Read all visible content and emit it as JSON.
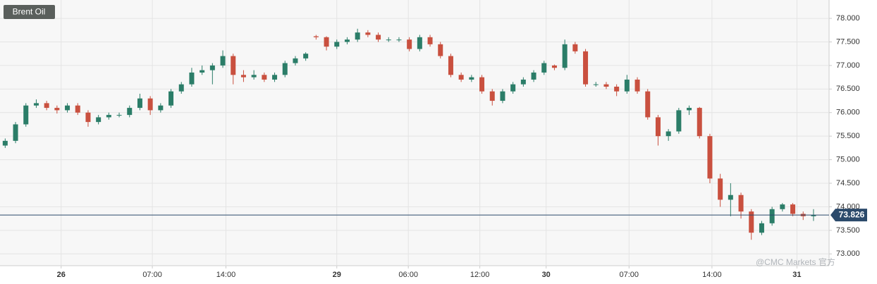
{
  "chart_data": {
    "type": "candlestick",
    "title": "Brent Oil",
    "watermark": "@CMC Markets 官方",
    "ohlc": [
      [
        75.3,
        75.45,
        75.25,
        75.4
      ],
      [
        75.4,
        75.8,
        75.35,
        75.75
      ],
      [
        75.75,
        76.2,
        75.7,
        76.15
      ],
      [
        76.15,
        76.28,
        76.1,
        76.2
      ],
      [
        76.2,
        76.25,
        76.05,
        76.1
      ],
      [
        76.1,
        76.15,
        75.98,
        76.05
      ],
      [
        76.05,
        76.2,
        76.0,
        76.15
      ],
      [
        76.15,
        76.2,
        75.95,
        76.0
      ],
      [
        76.0,
        76.05,
        75.7,
        75.8
      ],
      [
        75.8,
        75.95,
        75.75,
        75.9
      ],
      [
        75.9,
        76.0,
        75.85,
        75.95
      ],
      [
        75.95,
        76.0,
        75.9,
        75.95
      ],
      [
        75.95,
        76.15,
        75.9,
        76.1
      ],
      [
        76.1,
        76.4,
        76.05,
        76.3
      ],
      [
        76.3,
        76.35,
        75.95,
        76.05
      ],
      [
        76.05,
        76.2,
        76.0,
        76.15
      ],
      [
        76.15,
        76.5,
        76.1,
        76.45
      ],
      [
        76.45,
        76.65,
        76.4,
        76.6
      ],
      [
        76.6,
        76.95,
        76.55,
        76.85
      ],
      [
        76.85,
        77.0,
        76.8,
        76.9
      ],
      [
        76.9,
        77.05,
        76.6,
        77.0
      ],
      [
        77.0,
        77.32,
        76.95,
        77.2
      ],
      [
        77.2,
        77.25,
        76.6,
        76.8
      ],
      [
        76.8,
        76.9,
        76.65,
        76.75
      ],
      [
        76.75,
        76.9,
        76.7,
        76.8
      ],
      [
        76.8,
        76.85,
        76.65,
        76.7
      ],
      [
        76.7,
        76.85,
        76.65,
        76.8
      ],
      [
        76.8,
        77.1,
        76.75,
        77.05
      ],
      [
        77.05,
        77.2,
        77.0,
        77.15
      ],
      [
        77.15,
        77.28,
        77.1,
        77.25
      ],
      [
        77.62,
        77.65,
        77.55,
        77.6
      ],
      [
        77.6,
        77.62,
        77.32,
        77.4
      ],
      [
        77.4,
        77.55,
        77.35,
        77.5
      ],
      [
        77.5,
        77.6,
        77.45,
        77.55
      ],
      [
        77.55,
        77.78,
        77.5,
        77.7
      ],
      [
        77.7,
        77.75,
        77.6,
        77.65
      ],
      [
        77.65,
        77.7,
        77.5,
        77.55
      ],
      [
        77.55,
        77.6,
        77.5,
        77.55
      ],
      [
        77.55,
        77.6,
        77.5,
        77.55
      ],
      [
        77.55,
        77.6,
        77.3,
        77.35
      ],
      [
        77.35,
        77.65,
        77.3,
        77.6
      ],
      [
        77.6,
        77.65,
        77.4,
        77.45
      ],
      [
        77.45,
        77.5,
        77.15,
        77.2
      ],
      [
        77.2,
        77.25,
        76.75,
        76.8
      ],
      [
        76.8,
        76.85,
        76.65,
        76.7
      ],
      [
        76.7,
        76.8,
        76.65,
        76.75
      ],
      [
        76.75,
        76.8,
        76.4,
        76.45
      ],
      [
        76.45,
        76.5,
        76.15,
        76.25
      ],
      [
        76.25,
        76.5,
        76.2,
        76.45
      ],
      [
        76.45,
        76.65,
        76.4,
        76.6
      ],
      [
        76.6,
        76.75,
        76.55,
        76.7
      ],
      [
        76.7,
        76.9,
        76.65,
        76.85
      ],
      [
        76.85,
        77.1,
        76.8,
        77.05
      ],
      [
        77.0,
        77.02,
        76.9,
        76.95
      ],
      [
        76.95,
        77.55,
        76.9,
        77.45
      ],
      [
        77.45,
        77.5,
        77.25,
        77.3
      ],
      [
        77.3,
        77.35,
        76.55,
        76.6
      ],
      [
        76.6,
        76.65,
        76.55,
        76.6
      ],
      [
        76.6,
        76.65,
        76.5,
        76.55
      ],
      [
        76.55,
        76.6,
        76.35,
        76.45
      ],
      [
        76.45,
        76.8,
        76.4,
        76.7
      ],
      [
        76.7,
        76.75,
        76.4,
        76.45
      ],
      [
        76.45,
        76.5,
        75.85,
        75.9
      ],
      [
        75.9,
        75.95,
        75.3,
        75.5
      ],
      [
        75.5,
        75.65,
        75.4,
        75.6
      ],
      [
        75.6,
        76.1,
        75.55,
        76.05
      ],
      [
        76.05,
        76.15,
        75.95,
        76.1
      ],
      [
        76.1,
        76.12,
        75.45,
        75.5
      ],
      [
        75.5,
        75.55,
        74.5,
        74.6
      ],
      [
        74.6,
        74.7,
        74.0,
        74.15
      ],
      [
        74.15,
        74.5,
        73.8,
        74.25
      ],
      [
        74.25,
        74.3,
        73.75,
        73.9
      ],
      [
        73.9,
        73.95,
        73.3,
        73.45
      ],
      [
        73.45,
        73.7,
        73.4,
        73.65
      ],
      [
        73.65,
        74.0,
        73.6,
        73.95
      ],
      [
        73.95,
        74.08,
        73.9,
        74.05
      ],
      [
        74.05,
        74.08,
        73.8,
        73.85
      ],
      [
        73.85,
        73.9,
        73.72,
        73.8
      ],
      [
        73.8,
        73.95,
        73.7,
        73.826
      ]
    ],
    "up_color": "#2b7d68",
    "down_color": "#c9503f",
    "last_price": 73.826,
    "last_price_color": "#2b4a6b",
    "xlim": [
      0,
      80
    ],
    "xticks": [
      {
        "value": 5.9,
        "label": "26"
      },
      {
        "value": 14.7,
        "label": "07:00"
      },
      {
        "value": 21.8,
        "label": "14:00"
      },
      {
        "value": 32.5,
        "label": "29"
      },
      {
        "value": 39.4,
        "label": "06:00"
      },
      {
        "value": 46.3,
        "label": "12:00"
      },
      {
        "value": 52.7,
        "label": "30"
      },
      {
        "value": 60.7,
        "label": "07:00"
      },
      {
        "value": 68.7,
        "label": "14:00"
      },
      {
        "value": 76.9,
        "label": "31"
      }
    ],
    "ylim": [
      72.75,
      78.39
    ],
    "yticks": [
      {
        "value": 73,
        "label": "73.000"
      },
      {
        "value": 73.5,
        "label": "73.500"
      },
      {
        "value": 74,
        "label": "74.000"
      },
      {
        "value": 74.5,
        "label": "74.500"
      },
      {
        "value": 75,
        "label": "75.000"
      },
      {
        "value": 75.5,
        "label": "75.500"
      },
      {
        "value": 76,
        "label": "76.000"
      },
      {
        "value": 76.5,
        "label": "76.500"
      },
      {
        "value": 77,
        "label": "77.000"
      },
      {
        "value": 77.5,
        "label": "77.500"
      },
      {
        "value": 78,
        "label": "78.000"
      }
    ],
    "grid": true
  }
}
